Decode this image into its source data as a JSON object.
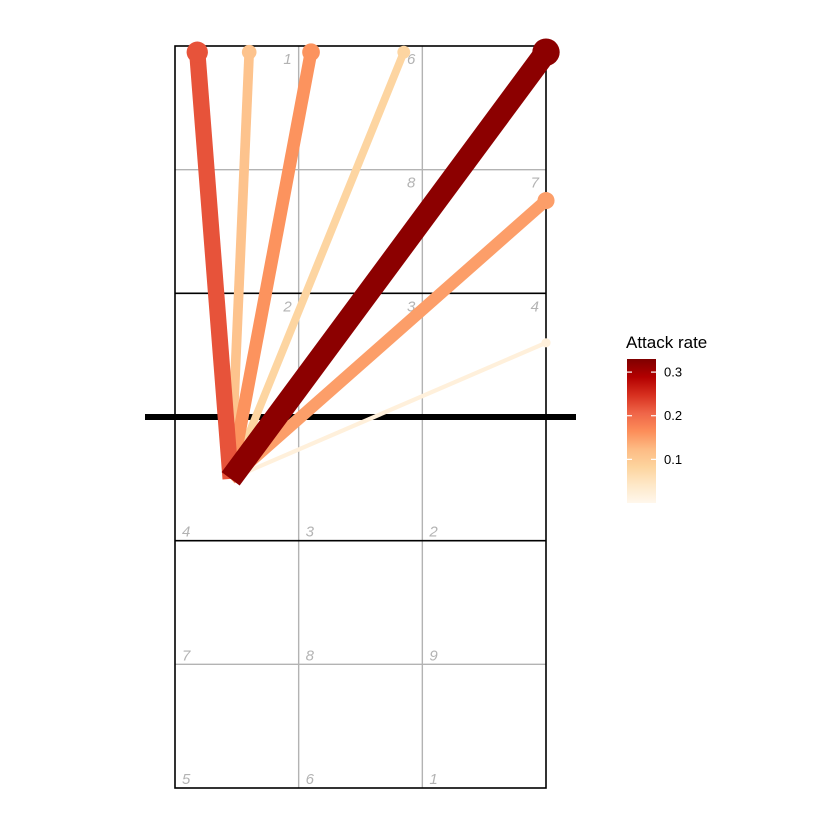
{
  "chart_data": {
    "type": "volleyball-court-attack-map",
    "title": "",
    "xlabel": "",
    "ylabel": "",
    "xlim": [
      0,
      3
    ],
    "ylim": [
      0,
      6
    ],
    "court": {
      "net_y": 3,
      "zone_labels_upper_half": [
        {
          "label": "5",
          "x": 0,
          "y": 0
        },
        {
          "label": "6",
          "x": 1,
          "y": 0
        },
        {
          "label": "1",
          "x": 2,
          "y": 0
        },
        {
          "label": "7",
          "x": 0,
          "y": 1
        },
        {
          "label": "8",
          "x": 1,
          "y": 1
        },
        {
          "label": "9",
          "x": 2,
          "y": 1
        },
        {
          "label": "4",
          "x": 0,
          "y": 2
        },
        {
          "label": "3",
          "x": 1,
          "y": 2
        },
        {
          "label": "2",
          "x": 2,
          "y": 2
        }
      ],
      "zone_labels_lower_half": [
        {
          "label": "2",
          "x": 1,
          "y": 4
        },
        {
          "label": "3",
          "x": 2,
          "y": 4
        },
        {
          "label": "4",
          "x": 3,
          "y": 4
        },
        {
          "label": "8",
          "x": 2,
          "y": 5
        },
        {
          "label": "7",
          "x": 3,
          "y": 5
        },
        {
          "label": "1",
          "x": 1,
          "y": 6
        },
        {
          "label": "6",
          "x": 2,
          "y": 6
        }
      ]
    },
    "attacks": [
      {
        "from_x": 0.45,
        "from_y": 2.5,
        "to_x": 0.18,
        "to_y": 5.95,
        "rate": 0.22
      },
      {
        "from_x": 0.45,
        "from_y": 2.5,
        "to_x": 0.6,
        "to_y": 5.95,
        "rate": 0.11
      },
      {
        "from_x": 0.45,
        "from_y": 2.5,
        "to_x": 1.1,
        "to_y": 5.95,
        "rate": 0.16
      },
      {
        "from_x": 0.45,
        "from_y": 2.5,
        "to_x": 1.85,
        "to_y": 5.95,
        "rate": 0.08
      },
      {
        "from_x": 0.45,
        "from_y": 2.5,
        "to_x": 3.0,
        "to_y": 5.95,
        "rate": 0.32
      },
      {
        "from_x": 0.45,
        "from_y": 2.5,
        "to_x": 3.0,
        "to_y": 4.75,
        "rate": 0.15
      },
      {
        "from_x": 0.45,
        "from_y": 2.5,
        "to_x": 3.0,
        "to_y": 3.6,
        "rate": 0.02
      }
    ],
    "color_scale": {
      "name": "Attack rate",
      "min": 0,
      "max": 0.33,
      "ticks": [
        0.1,
        0.2,
        0.3
      ],
      "tick_labels": [
        "0.1",
        "0.2",
        "0.3"
      ],
      "colors": [
        "#fff7ec",
        "#fee8c8",
        "#fdd49e",
        "#fdbb84",
        "#fc8d59",
        "#ef6548",
        "#d7301f",
        "#b30000",
        "#7f0000"
      ]
    },
    "grid": true,
    "legend_position": "right"
  }
}
